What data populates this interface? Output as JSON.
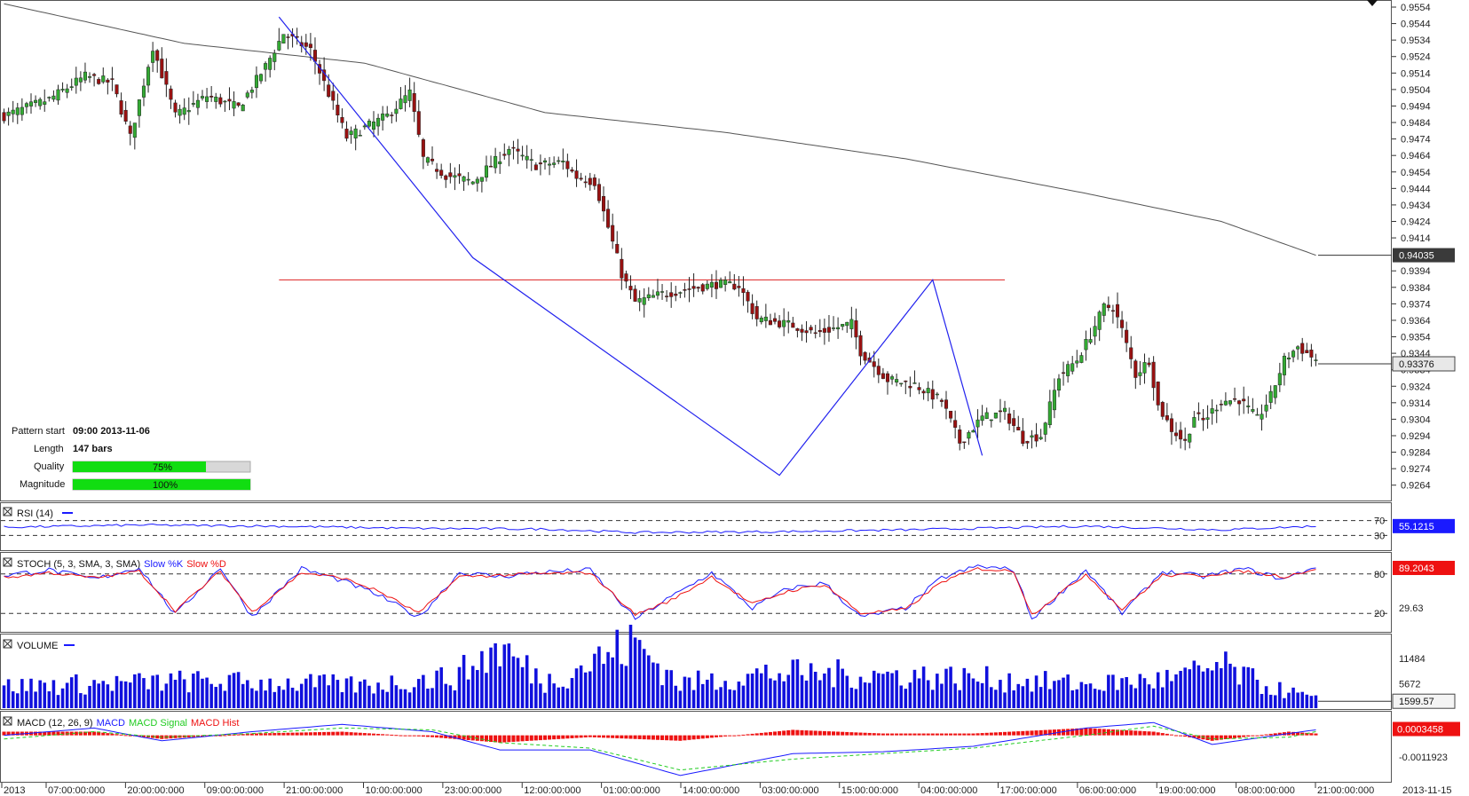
{
  "pattern_info": {
    "start_label": "Pattern start",
    "start_value": "09:00 2013-11-06",
    "length_label": "Length",
    "length_value": "147 bars",
    "quality_label": "Quality",
    "quality_text": "75%",
    "quality": 0.75,
    "magnitude_label": "Magnitude",
    "magnitude_text": "100%",
    "magnitude": 1.0
  },
  "colors": {
    "bull": "#33aa33",
    "bear": "#991111",
    "pattern": "#2222ee",
    "resistance": "#dd2222",
    "ma": "#555555",
    "rsi": "#1a1aff",
    "stoch_k": "#1a1aff",
    "stoch_d": "#ee1111",
    "volume": "#1010dd",
    "macd": "#1a1aff",
    "macd_signal": "#22cc22",
    "macd_hist": "#ee1111",
    "tag_dark": "#3a3a3a",
    "tag_red": "#ee1111",
    "tag_blue": "#1a1aff"
  },
  "chart_data": [
    {
      "type": "candlestick",
      "pane": "price",
      "ylim": [
        0.9259,
        0.9554
      ],
      "y_ticks": [
        "0.9554",
        "0.9544",
        "0.9534",
        "0.9524",
        "0.9514",
        "0.9504",
        "0.9494",
        "0.9484",
        "0.9474",
        "0.9464",
        "0.9454",
        "0.9444",
        "0.9434",
        "0.9424",
        "0.9414",
        "0.9394",
        "0.9384",
        "0.9374",
        "0.9364",
        "0.9354",
        "0.9344",
        "0.9334",
        "0.9324",
        "0.9314",
        "0.9304",
        "0.9294",
        "0.9284",
        "0.9274",
        "0.9264"
      ],
      "y_tick_values": [
        0.9554,
        0.9544,
        0.9534,
        0.9524,
        0.9514,
        0.9504,
        0.9494,
        0.9484,
        0.9474,
        0.9464,
        0.9454,
        0.9444,
        0.9434,
        0.9424,
        0.9414,
        0.9394,
        0.9384,
        0.9374,
        0.9364,
        0.9354,
        0.9344,
        0.9334,
        0.9324,
        0.9314,
        0.9304,
        0.9294,
        0.9284,
        0.9274,
        0.9264
      ],
      "x_ticks": [
        "2013",
        "07:00:00:000",
        "20:00:00:000",
        "09:00:00:000",
        "21:00:00:000",
        "10:00:00:000",
        "23:00:00:000",
        "12:00:00:000",
        "01:00:00:000",
        "14:00:00:000",
        "03:00:00:000",
        "15:00:00:000",
        "04:00:00:000",
        "17:00:00:000",
        "06:00:00:000",
        "19:00:00:000",
        "08:00:00:000",
        "21:00:00:000"
      ],
      "x_end_label": "2013-11-15",
      "current_price": "0.93376",
      "current_price_value": 0.93376,
      "ma_label": "0.94035",
      "ma_value": 0.94035,
      "resistance": 0.93885,
      "pattern_points": [
        [
          61,
          0.9548
        ],
        [
          104,
          0.9402
        ],
        [
          172,
          0.927
        ],
        [
          206,
          0.93885
        ],
        [
          217,
          0.9282
        ]
      ],
      "anchors": [
        [
          0,
          0.9488
        ],
        [
          10,
          0.9498
        ],
        [
          18,
          0.9512
        ],
        [
          24,
          0.9508
        ],
        [
          28,
          0.9475
        ],
        [
          33,
          0.953
        ],
        [
          38,
          0.9488
        ],
        [
          45,
          0.95
        ],
        [
          52,
          0.9493
        ],
        [
          58,
          0.9518
        ],
        [
          62,
          0.9538
        ],
        [
          68,
          0.9528
        ],
        [
          76,
          0.9475
        ],
        [
          85,
          0.9488
        ],
        [
          90,
          0.9502
        ],
        [
          93,
          0.9462
        ],
        [
          98,
          0.9452
        ],
        [
          104,
          0.9448
        ],
        [
          112,
          0.9468
        ],
        [
          118,
          0.9458
        ],
        [
          124,
          0.946
        ],
        [
          127,
          0.9451
        ],
        [
          131,
          0.9448
        ],
        [
          136,
          0.9402
        ],
        [
          137,
          0.9392
        ],
        [
          140,
          0.9375
        ],
        [
          146,
          0.938
        ],
        [
          152,
          0.9383
        ],
        [
          158,
          0.9386
        ],
        [
          163,
          0.9385
        ],
        [
          167,
          0.9365
        ],
        [
          175,
          0.9361
        ],
        [
          180,
          0.9356
        ],
        [
          188,
          0.9362
        ],
        [
          190,
          0.9345
        ],
        [
          196,
          0.9328
        ],
        [
          202,
          0.9325
        ],
        [
          208,
          0.9315
        ],
        [
          212,
          0.929
        ],
        [
          217,
          0.9305
        ],
        [
          222,
          0.9308
        ],
        [
          226,
          0.9292
        ],
        [
          230,
          0.9294
        ],
        [
          234,
          0.933
        ],
        [
          238,
          0.934
        ],
        [
          241,
          0.9355
        ],
        [
          244,
          0.9372
        ],
        [
          246,
          0.9372
        ],
        [
          248,
          0.9358
        ],
        [
          251,
          0.9331
        ],
        [
          254,
          0.934
        ],
        [
          256,
          0.9312
        ],
        [
          259,
          0.9298
        ],
        [
          262,
          0.929
        ],
        [
          264,
          0.9306
        ],
        [
          266,
          0.9303
        ],
        [
          270,
          0.9315
        ],
        [
          274,
          0.9316
        ],
        [
          278,
          0.9304
        ],
        [
          281,
          0.9318
        ],
        [
          284,
          0.934
        ],
        [
          287,
          0.9348
        ],
        [
          291,
          0.934
        ]
      ],
      "candle_count": 292
    },
    {
      "type": "line",
      "pane": "rsi",
      "title": "RSI (14)",
      "ylim": [
        0,
        100
      ],
      "levels": [
        70,
        30
      ],
      "level_labels": [
        "70",
        "30"
      ],
      "value": 55.1215,
      "value_label": "55.1215",
      "series": [
        {
          "name": "RSI",
          "anchors": [
            [
              0,
              52
            ],
            [
              30,
              58
            ],
            [
              60,
              55
            ],
            [
              90,
              49
            ],
            [
              120,
              47
            ],
            [
              140,
              38
            ],
            [
              170,
              40
            ],
            [
              200,
              45
            ],
            [
              240,
              55
            ],
            [
              270,
              45
            ],
            [
              291,
              55
            ]
          ]
        }
      ]
    },
    {
      "type": "line",
      "pane": "stoch",
      "title": "STOCH (5, 3, SMA, 3, SMA)",
      "legend": [
        "Slow %K",
        "Slow %D"
      ],
      "ylim": [
        0,
        100
      ],
      "levels": [
        80,
        20
      ],
      "level_labels": [
        "80",
        "20"
      ],
      "value_label": "89.2043",
      "value": 89.2043,
      "min_label": "29.63",
      "series": [
        {
          "name": "Slow %K",
          "anchors": [
            [
              0,
              78
            ],
            [
              10,
              86
            ],
            [
              20,
              72
            ],
            [
              30,
              90
            ],
            [
              38,
              18
            ],
            [
              48,
              90
            ],
            [
              55,
              15
            ],
            [
              66,
              88
            ],
            [
              75,
              70
            ],
            [
              83,
              48
            ],
            [
              92,
              14
            ],
            [
              101,
              82
            ],
            [
              110,
              76
            ],
            [
              118,
              82
            ],
            [
              130,
              86
            ],
            [
              140,
              12
            ],
            [
              148,
              45
            ],
            [
              157,
              82
            ],
            [
              166,
              28
            ],
            [
              174,
              58
            ],
            [
              182,
              66
            ],
            [
              190,
              14
            ],
            [
              200,
              28
            ],
            [
              208,
              74
            ],
            [
              216,
              92
            ],
            [
              224,
              86
            ],
            [
              228,
              12
            ],
            [
              240,
              86
            ],
            [
              248,
              20
            ],
            [
              257,
              84
            ],
            [
              266,
              76
            ],
            [
              275,
              88
            ],
            [
              284,
              72
            ],
            [
              291,
              92
            ]
          ]
        },
        {
          "name": "Slow %D",
          "anchors": [
            [
              0,
              74
            ],
            [
              10,
              82
            ],
            [
              20,
              74
            ],
            [
              30,
              84
            ],
            [
              38,
              24
            ],
            [
              48,
              84
            ],
            [
              55,
              22
            ],
            [
              66,
              82
            ],
            [
              75,
              74
            ],
            [
              83,
              54
            ],
            [
              92,
              20
            ],
            [
              101,
              76
            ],
            [
              110,
              78
            ],
            [
              118,
              80
            ],
            [
              130,
              82
            ],
            [
              140,
              18
            ],
            [
              148,
              40
            ],
            [
              157,
              76
            ],
            [
              166,
              34
            ],
            [
              174,
              54
            ],
            [
              182,
              64
            ],
            [
              190,
              20
            ],
            [
              200,
              26
            ],
            [
              208,
              68
            ],
            [
              216,
              88
            ],
            [
              224,
              84
            ],
            [
              228,
              18
            ],
            [
              240,
              80
            ],
            [
              248,
              26
            ],
            [
              257,
              78
            ],
            [
              266,
              78
            ],
            [
              275,
              84
            ],
            [
              284,
              76
            ],
            [
              291,
              88
            ]
          ]
        }
      ]
    },
    {
      "type": "bar",
      "pane": "volume",
      "title": "VOLUME",
      "ylim": [
        0,
        16000
      ],
      "y_ticks": [
        "11484",
        "5672"
      ],
      "y_tick_values": [
        11484,
        5672
      ],
      "value_label": "1599.57",
      "value": 1599.57,
      "anchors": [
        [
          0,
          5000
        ],
        [
          20,
          5600
        ],
        [
          40,
          6200
        ],
        [
          60,
          5800
        ],
        [
          80,
          5200
        ],
        [
          100,
          7200
        ],
        [
          110,
          14000
        ],
        [
          120,
          6000
        ],
        [
          140,
          15000
        ],
        [
          150,
          5600
        ],
        [
          170,
          8000
        ],
        [
          200,
          7600
        ],
        [
          220,
          6600
        ],
        [
          240,
          5400
        ],
        [
          260,
          6800
        ],
        [
          270,
          9600
        ],
        [
          280,
          5000
        ],
        [
          291,
          2200
        ]
      ]
    },
    {
      "type": "line",
      "pane": "macd",
      "title": "MACD (12, 26, 9)",
      "legend": [
        "MACD",
        "MACD Signal",
        "MACD Hist"
      ],
      "ylim": [
        -0.0024,
        0.0011
      ],
      "y_ticks": [
        "-0.0011923"
      ],
      "y_tick_values": [
        -0.0011923
      ],
      "value_label": "0.0003458",
      "value": 0.0003458,
      "series": [
        {
          "name": "MACD",
          "anchors": [
            [
              0,
              0.0
            ],
            [
              20,
              0.0004
            ],
            [
              35,
              -0.0003
            ],
            [
              55,
              0.0002
            ],
            [
              75,
              0.0006
            ],
            [
              95,
              0.0002
            ],
            [
              110,
              -0.0008
            ],
            [
              130,
              -0.0008
            ],
            [
              150,
              -0.0022
            ],
            [
              175,
              -0.001
            ],
            [
              195,
              -0.0009
            ],
            [
              215,
              -0.0006
            ],
            [
              240,
              0.0004
            ],
            [
              255,
              0.0007
            ],
            [
              268,
              -0.0005
            ],
            [
              285,
              0.0001
            ],
            [
              291,
              0.0003
            ]
          ]
        },
        {
          "name": "MACD Signal",
          "anchors": [
            [
              0,
              -0.0002
            ],
            [
              20,
              0.0002
            ],
            [
              35,
              -0.0001
            ],
            [
              55,
              0.0001
            ],
            [
              75,
              0.0004
            ],
            [
              95,
              0.0003
            ],
            [
              110,
              -0.0004
            ],
            [
              130,
              -0.0007
            ],
            [
              150,
              -0.0019
            ],
            [
              175,
              -0.0013
            ],
            [
              195,
              -0.001
            ],
            [
              215,
              -0.0007
            ],
            [
              240,
              0.0
            ],
            [
              255,
              0.0005
            ],
            [
              268,
              -0.0002
            ],
            [
              285,
              -0.0001
            ],
            [
              291,
              0.0002
            ]
          ]
        },
        {
          "name": "MACD Hist",
          "anchors": [
            [
              0,
              0.0002
            ],
            [
              20,
              0.0002
            ],
            [
              35,
              -0.0002
            ],
            [
              55,
              0.0001
            ],
            [
              75,
              0.0002
            ],
            [
              95,
              -0.0001
            ],
            [
              110,
              -0.0004
            ],
            [
              130,
              -0.0001
            ],
            [
              150,
              -0.0003
            ],
            [
              175,
              0.0003
            ],
            [
              195,
              0.0001
            ],
            [
              215,
              0.0001
            ],
            [
              240,
              0.0004
            ],
            [
              255,
              0.0002
            ],
            [
              268,
              -0.0003
            ],
            [
              285,
              0.0002
            ],
            [
              291,
              0.0001
            ]
          ]
        }
      ]
    }
  ]
}
